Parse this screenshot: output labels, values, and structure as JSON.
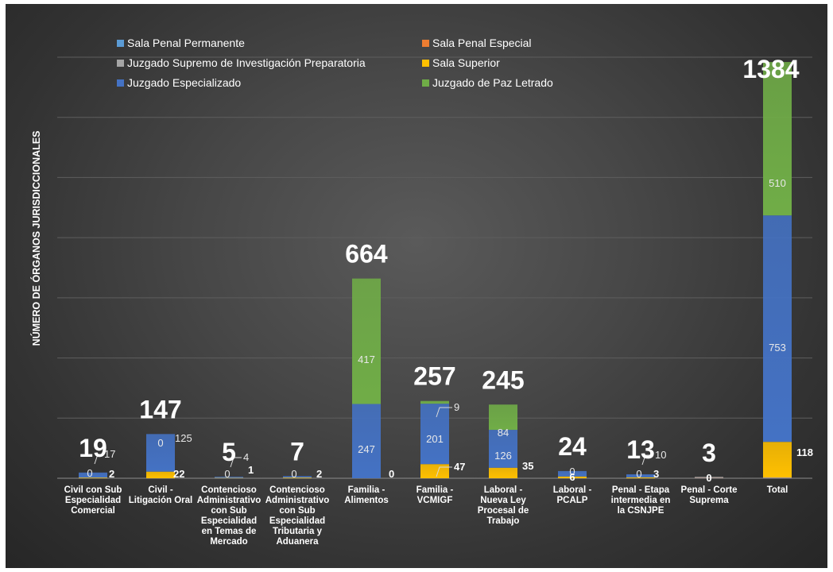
{
  "chart_data": {
    "type": "bar",
    "stacked": true,
    "ylabel": "NÚMERO DE ÓRGANOS JURISDICCIONALES",
    "ylim": [
      0,
      1400
    ],
    "grid": true,
    "legend_position": "top-left",
    "colors": {
      "Sala Penal Permanente": "#5b9bd5",
      "Sala Penal Especial": "#ed7d31",
      "Juzgado Supremo de Investigación Preparatoria": "#a5a5a5",
      "Sala Superior": "#ffc000",
      "Juzgado Especializado": "#4472c4",
      "Juzgado de Paz Letrado": "#70ad47"
    },
    "categories": [
      "Civil con Sub Especialidad Comercial",
      "Civil - Litigación Oral",
      "Contencioso Administrativo con Sub Especialidad en Temas de Mercado",
      "Contencioso Administrativo con Sub Especialidad Tributaria y Aduanera",
      "Familia - Alimentos",
      "Familia - VCMIGF",
      "Laboral - Nueva Ley Procesal de Trabajo",
      "Laboral - PCALP",
      "Penal - Etapa intermedia en la CSNJPE",
      "Penal - Corte Suprema",
      "Total"
    ],
    "series": [
      {
        "name": "Sala Penal Permanente",
        "values": [
          0,
          0,
          0,
          0,
          0,
          0,
          0,
          0,
          0,
          1,
          1
        ]
      },
      {
        "name": "Sala Penal Especial",
        "values": [
          0,
          0,
          0,
          0,
          0,
          0,
          0,
          0,
          0,
          1,
          1
        ]
      },
      {
        "name": "Juzgado Supremo de Investigación Preparatoria",
        "values": [
          0,
          0,
          0,
          0,
          0,
          0,
          0,
          0,
          0,
          1,
          1
        ]
      },
      {
        "name": "Sala Superior",
        "values": [
          2,
          22,
          1,
          2,
          0,
          47,
          35,
          6,
          3,
          0,
          118
        ]
      },
      {
        "name": "Juzgado Especializado",
        "values": [
          17,
          125,
          4,
          5,
          247,
          201,
          126,
          18,
          10,
          0,
          753
        ]
      },
      {
        "name": "Juzgado de Paz Letrado",
        "values": [
          0,
          0,
          0,
          0,
          417,
          9,
          84,
          0,
          0,
          0,
          510
        ]
      }
    ],
    "totals": [
      19,
      147,
      5,
      7,
      664,
      257,
      245,
      24,
      13,
      3,
      1384
    ],
    "data_labels": [
      {
        "cat": 0,
        "text": "0"
      },
      {
        "cat": 0,
        "text": "17"
      },
      {
        "cat": 0,
        "text": "2"
      },
      {
        "cat": 1,
        "text": "0"
      },
      {
        "cat": 1,
        "text": "125"
      },
      {
        "cat": 1,
        "text": "22"
      },
      {
        "cat": 2,
        "text": "0"
      },
      {
        "cat": 2,
        "text": "4"
      },
      {
        "cat": 2,
        "text": "1"
      },
      {
        "cat": 3,
        "text": "0"
      },
      {
        "cat": 3,
        "text": "2"
      },
      {
        "cat": 4,
        "text": "417"
      },
      {
        "cat": 4,
        "text": "247"
      },
      {
        "cat": 4,
        "text": "0"
      },
      {
        "cat": 5,
        "text": "9"
      },
      {
        "cat": 5,
        "text": "201"
      },
      {
        "cat": 5,
        "text": "47"
      },
      {
        "cat": 6,
        "text": "84"
      },
      {
        "cat": 6,
        "text": "126"
      },
      {
        "cat": 6,
        "text": "35"
      },
      {
        "cat": 7,
        "text": "0"
      },
      {
        "cat": 7,
        "text": "6"
      },
      {
        "cat": 8,
        "text": "0"
      },
      {
        "cat": 8,
        "text": "10"
      },
      {
        "cat": 8,
        "text": "3"
      },
      {
        "cat": 9,
        "text": "0"
      },
      {
        "cat": 10,
        "text": "510"
      },
      {
        "cat": 10,
        "text": "753"
      },
      {
        "cat": 10,
        "text": "118"
      }
    ]
  }
}
